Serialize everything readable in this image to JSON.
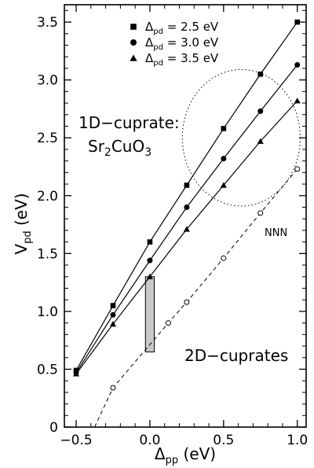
{
  "chart_data": {
    "type": "line",
    "xlabel": {
      "main": "Δ",
      "sub": "pp",
      "rest": " (eV)"
    },
    "ylabel": {
      "main": "V",
      "sub": "pd",
      "rest": " (eV)"
    },
    "xlim": [
      -0.58,
      1.06
    ],
    "ylim": [
      0,
      3.65
    ],
    "xticks": [
      -0.5,
      0,
      0.5,
      1
    ],
    "xtick_labels": [
      "−0.5",
      "0.0",
      "0.5",
      "1.0"
    ],
    "yticks": [
      0,
      0.5,
      1,
      1.5,
      2,
      2.5,
      3,
      3.5
    ],
    "ytick_labels": [
      "0",
      "0.5",
      "1.0",
      "1.5",
      "2.0",
      "2.5",
      "3.0",
      "3.5"
    ],
    "grid": false,
    "legend_position": "top-center",
    "series": [
      {
        "label_main": "Δ",
        "label_sub": "pd",
        "label_rest": " = 2.5 eV",
        "marker": "square",
        "style": "solid",
        "x": [
          -0.5,
          -0.25,
          0,
          0.25,
          0.5,
          0.75,
          1
        ],
        "y": [
          0.49,
          1.05,
          1.6,
          2.09,
          2.58,
          3.05,
          3.5
        ]
      },
      {
        "label_main": "Δ",
        "label_sub": "pd",
        "label_rest": " = 3.0 eV",
        "marker": "circle",
        "style": "solid",
        "x": [
          -0.5,
          -0.25,
          0,
          0.25,
          0.5,
          0.75,
          1
        ],
        "y": [
          0.47,
          0.97,
          1.44,
          1.9,
          2.32,
          2.73,
          3.13
        ]
      },
      {
        "label_main": "Δ",
        "label_sub": "pd",
        "label_rest": " = 3.5 eV",
        "marker": "triangle",
        "style": "solid",
        "x": [
          -0.5,
          -0.25,
          0,
          0.25,
          0.5,
          0.75,
          1
        ],
        "y": [
          0.46,
          0.89,
          1.3,
          1.71,
          2.09,
          2.47,
          2.82
        ]
      },
      {
        "label": "NNN",
        "marker": "open-circle",
        "style": "dashed",
        "x": [
          -0.375,
          -0.25,
          0.125,
          0.25,
          0.5,
          0.75,
          1
        ],
        "y": [
          0,
          0.34,
          0.9,
          1.08,
          1.46,
          1.85,
          2.23
        ],
        "marker_x": [
          -0.25,
          0.125,
          0.25,
          0.5,
          0.75,
          1
        ],
        "marker_y": [
          0.34,
          0.9,
          1.08,
          1.46,
          1.85,
          2.23
        ]
      }
    ],
    "annotations": {
      "one_d_line1": "1D−cuprate:",
      "one_d_line2_a": "Sr",
      "one_d_line2_b": "2",
      "one_d_line2_c": "CuO",
      "one_d_line2_d": "3",
      "two_d": "2D−cuprates",
      "nnn": "NNN"
    },
    "region_2d": {
      "x0": -0.03,
      "x1": 0.03,
      "y0": 0.65,
      "y1": 1.3,
      "fill": "#c8c8c8"
    },
    "ellipse_1d": {
      "cx": 0.62,
      "cy": 2.5,
      "rx": 0.4,
      "ry": 0.59
    }
  }
}
